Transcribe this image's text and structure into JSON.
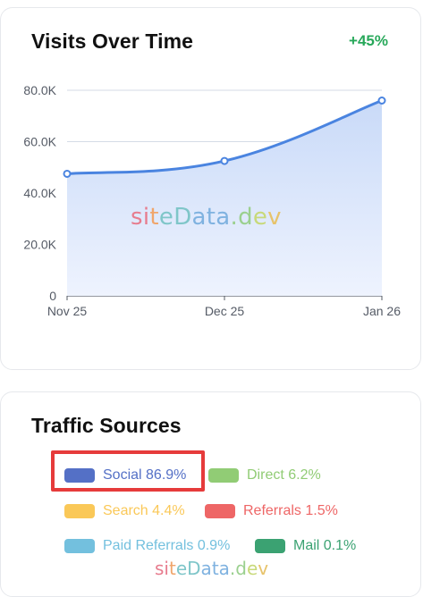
{
  "visits": {
    "title": "Visits Over Time",
    "change": "+45%",
    "watermark": "siteData.dev"
  },
  "chart_data": {
    "type": "area",
    "x": [
      "Nov 25",
      "Dec 25",
      "Jan 26"
    ],
    "values": [
      47500,
      52500,
      76000
    ],
    "yticks": [
      "0",
      "20.0K",
      "40.0K",
      "60.0K",
      "80.0K"
    ],
    "ylim": [
      0,
      80000
    ],
    "grid": true,
    "colors": {
      "line": "#4a84e0",
      "fill_top": "#c9daf8",
      "fill_bottom": "#eef3fe",
      "grid": "#d5dbe6",
      "axis": "#555b66"
    }
  },
  "traffic": {
    "title": "Traffic Sources",
    "watermark": "siteData.dev",
    "legend": [
      {
        "label": "Social 86.9%",
        "color": "#5470c6",
        "text_color": "#5470c6"
      },
      {
        "label": "Direct 6.2%",
        "color": "#91cc75",
        "text_color": "#91cc75"
      },
      {
        "label": "Search 4.4%",
        "color": "#fac858",
        "text_color": "#fac858"
      },
      {
        "label": "Referrals 1.5%",
        "color": "#ee6666",
        "text_color": "#ee6666"
      },
      {
        "label": "Paid Referrals 0.9%",
        "color": "#73c0de",
        "text_color": "#73c0de"
      },
      {
        "label": "Mail 0.1%",
        "color": "#3ba272",
        "text_color": "#3ba272"
      }
    ],
    "highlight_color": "#e63b3b"
  }
}
